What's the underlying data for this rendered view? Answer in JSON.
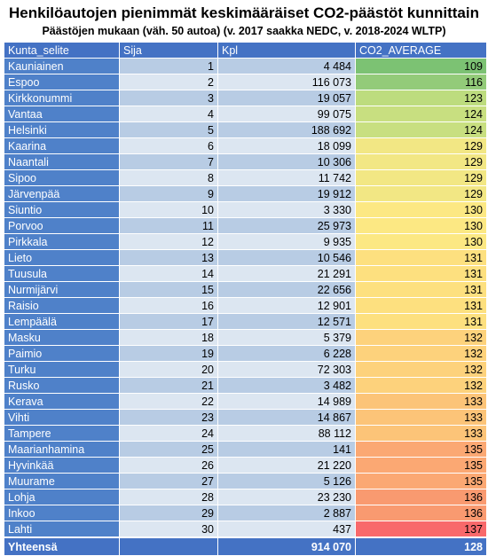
{
  "title": "Henkilöautojen pienimmät keskimääräiset CO2-päästöt kunnittain",
  "subtitle": "Päästöjen mukaan (väh. 50 autoa) (v. 2017 saakka NEDC, v. 2018-2024 WLTP)",
  "columns": [
    "Kunta_selite",
    "Sija",
    "Kpl",
    "CO2_AVERAGE"
  ],
  "rows": [
    {
      "name": "Kauniainen",
      "rank": "1",
      "count": "4 484",
      "co2": "109",
      "color": "#7cc273"
    },
    {
      "name": "Espoo",
      "rank": "2",
      "count": "116 073",
      "co2": "116",
      "color": "#93cb79"
    },
    {
      "name": "Kirkkonummi",
      "rank": "3",
      "count": "19 057",
      "co2": "123",
      "color": "#bddc7e"
    },
    {
      "name": "Vantaa",
      "rank": "4",
      "count": "99 075",
      "co2": "124",
      "color": "#c8df80"
    },
    {
      "name": "Helsinki",
      "rank": "5",
      "count": "188 692",
      "co2": "124",
      "color": "#c8df80"
    },
    {
      "name": "Kaarina",
      "rank": "6",
      "count": "18 099",
      "co2": "129",
      "color": "#f2e784"
    },
    {
      "name": "Naantali",
      "rank": "7",
      "count": "10 306",
      "co2": "129",
      "color": "#f2e784"
    },
    {
      "name": "Sipoo",
      "rank": "8",
      "count": "11 742",
      "co2": "129",
      "color": "#f2e784"
    },
    {
      "name": "Järvenpää",
      "rank": "9",
      "count": "19 912",
      "co2": "129",
      "color": "#f2e784"
    },
    {
      "name": "Siuntio",
      "rank": "10",
      "count": "3 330",
      "co2": "130",
      "color": "#fce883"
    },
    {
      "name": "Porvoo",
      "rank": "11",
      "count": "25 973",
      "co2": "130",
      "color": "#fce883"
    },
    {
      "name": "Pirkkala",
      "rank": "12",
      "count": "9 935",
      "co2": "130",
      "color": "#fce883"
    },
    {
      "name": "Lieto",
      "rank": "13",
      "count": "10 546",
      "co2": "131",
      "color": "#fde07f"
    },
    {
      "name": "Tuusula",
      "rank": "14",
      "count": "21 291",
      "co2": "131",
      "color": "#fde07f"
    },
    {
      "name": "Nurmijärvi",
      "rank": "15",
      "count": "22 656",
      "co2": "131",
      "color": "#fde07f"
    },
    {
      "name": "Raisio",
      "rank": "16",
      "count": "12 901",
      "co2": "131",
      "color": "#fde07f"
    },
    {
      "name": "Lempäälä",
      "rank": "17",
      "count": "12 571",
      "co2": "131",
      "color": "#fde07f"
    },
    {
      "name": "Masku",
      "rank": "18",
      "count": "5 379",
      "co2": "132",
      "color": "#fdd27c"
    },
    {
      "name": "Paimio",
      "rank": "19",
      "count": "6 228",
      "co2": "132",
      "color": "#fdd27c"
    },
    {
      "name": "Turku",
      "rank": "20",
      "count": "72 303",
      "co2": "132",
      "color": "#fdd27c"
    },
    {
      "name": "Rusko",
      "rank": "21",
      "count": "3 482",
      "co2": "132",
      "color": "#fdd27c"
    },
    {
      "name": "Kerava",
      "rank": "22",
      "count": "14 989",
      "co2": "133",
      "color": "#fcc478"
    },
    {
      "name": "Vihti",
      "rank": "23",
      "count": "14 867",
      "co2": "133",
      "color": "#fcc478"
    },
    {
      "name": "Tampere",
      "rank": "24",
      "count": "88 112",
      "co2": "133",
      "color": "#fcc478"
    },
    {
      "name": "Maarianhamina",
      "rank": "25",
      "count": "141",
      "co2": "135",
      "color": "#fba873"
    },
    {
      "name": "Hyvinkää",
      "rank": "26",
      "count": "21 220",
      "co2": "135",
      "color": "#fba873"
    },
    {
      "name": "Muurame",
      "rank": "27",
      "count": "5 126",
      "co2": "135",
      "color": "#fba873"
    },
    {
      "name": "Lohja",
      "rank": "28",
      "count": "23 230",
      "co2": "136",
      "color": "#f99a70"
    },
    {
      "name": "Inkoo",
      "rank": "29",
      "count": "2 887",
      "co2": "136",
      "color": "#f99a70"
    },
    {
      "name": "Lahti",
      "rank": "30",
      "count": "437",
      "co2": "137",
      "color": "#f8696b"
    }
  ],
  "total": {
    "label": "Yhteensä",
    "rank": "",
    "count": "914 070",
    "co2": "128"
  }
}
